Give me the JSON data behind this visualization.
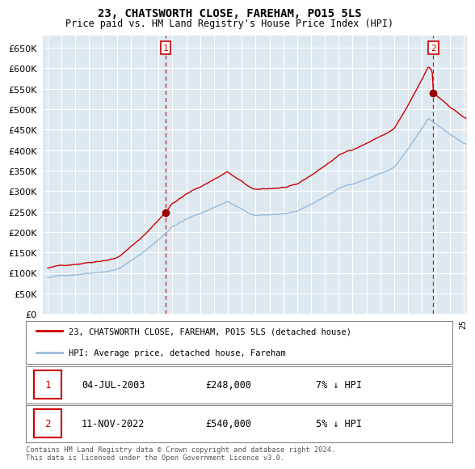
{
  "title": "23, CHATSWORTH CLOSE, FAREHAM, PO15 5LS",
  "subtitle": "Price paid vs. HM Land Registry's House Price Index (HPI)",
  "sale1_date": "04-JUL-2003",
  "sale1_price": 248000,
  "sale1_hpi": "7% ↓ HPI",
  "sale2_date": "11-NOV-2022",
  "sale2_price": 540000,
  "sale2_hpi": "5% ↓ HPI",
  "legend_label1": "23, CHATSWORTH CLOSE, FAREHAM, PO15 5LS (detached house)",
  "legend_label2": "HPI: Average price, detached house, Fareham",
  "footer": "Contains HM Land Registry data © Crown copyright and database right 2024.\nThis data is licensed under the Open Government Licence v3.0.",
  "line_color_sale": "#cc0000",
  "line_color_hpi": "#99bbdd",
  "marker_color_sale": "#990000",
  "vline_color": "#cc0000",
  "bg_color": "#dde8f0",
  "grid_color": "#ffffff",
  "ylim": [
    0,
    680000
  ],
  "yticks": [
    0,
    50000,
    100000,
    150000,
    200000,
    250000,
    300000,
    350000,
    400000,
    450000,
    500000,
    550000,
    600000,
    650000
  ],
  "sale1_x": 2003.54,
  "sale2_x": 2022.87
}
